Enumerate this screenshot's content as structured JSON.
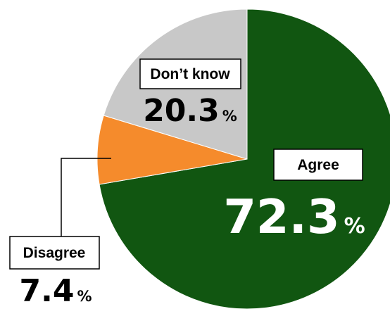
{
  "chart_data": {
    "type": "pie",
    "title": "",
    "legend": "none",
    "start_angle_deg": 0,
    "direction": "clockwise",
    "slices": [
      {
        "label": "Agree",
        "value": 72.3,
        "value_text": "72.3",
        "unit": "%",
        "color": "#115611"
      },
      {
        "label": "Disagree",
        "value": 7.4,
        "value_text": "7.4",
        "unit": "%",
        "color": "#f58b2c"
      },
      {
        "label": "Don’t know",
        "value": 20.3,
        "value_text": "20.3",
        "unit": "%",
        "color": "#c8c8c8"
      }
    ]
  }
}
